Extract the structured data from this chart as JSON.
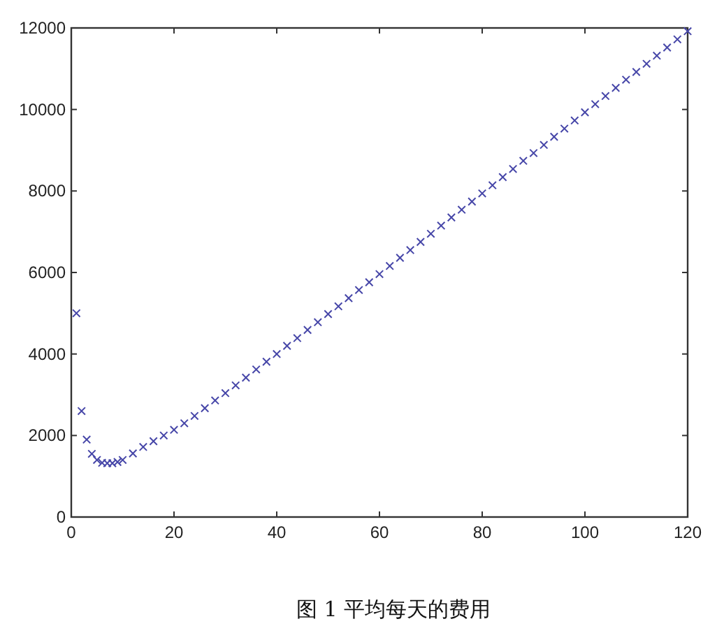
{
  "chart_data": {
    "type": "scatter",
    "annotations": [
      "图 1 平均每天的费用"
    ],
    "marker": "cross",
    "xlim": [
      0,
      120
    ],
    "ylim": [
      0,
      12000
    ],
    "xticks": [
      0,
      20,
      40,
      60,
      80,
      100,
      120
    ],
    "yticks": [
      0,
      2000,
      4000,
      6000,
      8000,
      10000,
      12000
    ],
    "series": [
      {
        "color": "#4646a8",
        "x": [
          1,
          2,
          3,
          4,
          5,
          6,
          7,
          8,
          9,
          10,
          12,
          14,
          16,
          18,
          20,
          22,
          24,
          26,
          28,
          30,
          32,
          34,
          36,
          38,
          40,
          42,
          44,
          46,
          48,
          50,
          52,
          54,
          56,
          58,
          60,
          62,
          64,
          66,
          68,
          70,
          72,
          74,
          76,
          78,
          80,
          82,
          84,
          86,
          88,
          90,
          92,
          94,
          96,
          98,
          100,
          102,
          104,
          106,
          108,
          110,
          112,
          114,
          116,
          118,
          120
        ],
        "values": [
          5000,
          2600,
          1900,
          1550,
          1400,
          1330,
          1320,
          1320,
          1350,
          1400,
          1560,
          1720,
          1860,
          2000,
          2140,
          2300,
          2480,
          2670,
          2860,
          3040,
          3230,
          3420,
          3620,
          3810,
          4000,
          4200,
          4390,
          4590,
          4780,
          4980,
          5170,
          5370,
          5570,
          5760,
          5960,
          6160,
          6360,
          6550,
          6750,
          6950,
          7150,
          7350,
          7540,
          7740,
          7940,
          8140,
          8340,
          8540,
          8740,
          8930,
          9130,
          9330,
          9530,
          9730,
          9930,
          10130,
          10330,
          10530,
          10730,
          10920,
          11120,
          11320,
          11520,
          11720,
          11920
        ]
      }
    ]
  }
}
